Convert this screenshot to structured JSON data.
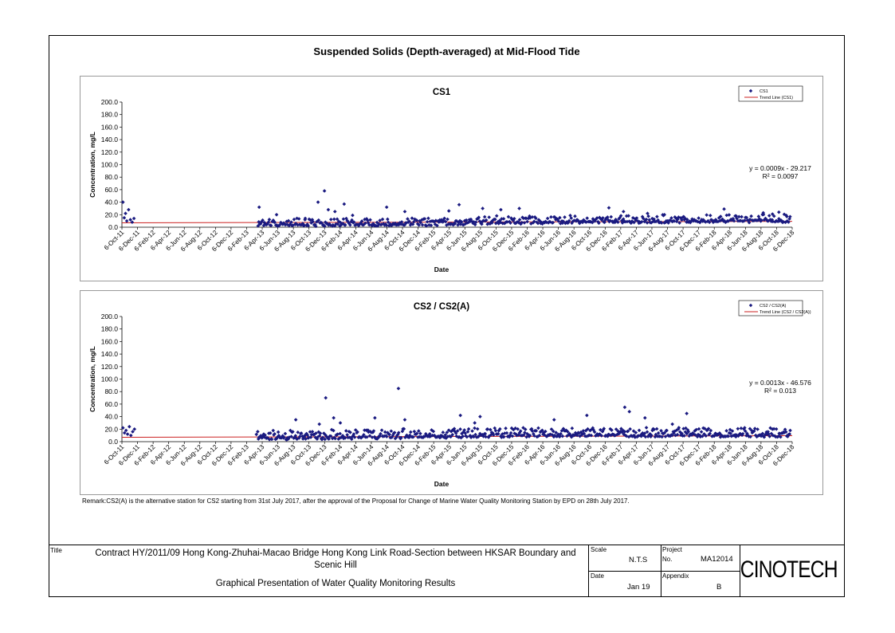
{
  "header": {
    "title": "Suspended Solids (Depth-averaged) at Mid-Flood Tide"
  },
  "charts_meta": {
    "xlabel": "Date",
    "ylabel": "Concentration, mg/L"
  },
  "chart_data": [
    {
      "type": "scatter",
      "title": "CS1",
      "xlabel": "Date",
      "ylabel": "Concentration, mg/L",
      "ylim": [
        0,
        200
      ],
      "xlim": [
        "2011-10-06",
        "2018-12-06"
      ],
      "y_ticks": [
        "0.0",
        "20.0",
        "40.0",
        "60.0",
        "80.0",
        "100.0",
        "120.0",
        "140.0",
        "160.0",
        "180.0",
        "200.0"
      ],
      "x_ticks": [
        "6-Oct-11",
        "6-Dec-11",
        "6-Feb-12",
        "6-Apr-12",
        "6-Jun-12",
        "6-Aug-12",
        "6-Oct-12",
        "6-Dec-12",
        "6-Feb-13",
        "6-Apr-13",
        "6-Jun-13",
        "6-Aug-13",
        "6-Oct-13",
        "6-Dec-13",
        "6-Feb-14",
        "6-Apr-14",
        "6-Jun-14",
        "6-Aug-14",
        "6-Oct-14",
        "6-Dec-14",
        "6-Feb-15",
        "6-Apr-15",
        "6-Jun-15",
        "6-Aug-15",
        "6-Oct-15",
        "6-Dec-15",
        "6-Feb-16",
        "6-Apr-16",
        "6-Jun-16",
        "6-Aug-16",
        "6-Oct-16",
        "6-Dec-16",
        "6-Feb-17",
        "6-Apr-17",
        "6-Jun-17",
        "6-Aug-17",
        "6-Oct-17",
        "6-Dec-17",
        "6-Feb-18",
        "6-Apr-18",
        "6-Jun-18",
        "6-Aug-18",
        "6-Oct-18",
        "6-Dec-18"
      ],
      "legend": {
        "position": "top-right",
        "series_label": "CS1",
        "trend_label": "Trend Line (CS1)"
      },
      "trend": {
        "equation": "y = 0.0009x - 29.217",
        "r2": "R² = 0.0097",
        "y_start": 7.0,
        "y_end": 9.4
      },
      "series_color": "#1a1a80",
      "trend_color": "#cc2222",
      "series": [
        {
          "name": "CS1",
          "x": [
            "2011-10-10",
            "2011-10-15",
            "2011-10-20",
            "2011-10-25",
            "2011-11-01",
            "2011-11-08",
            "2011-11-15",
            "2011-11-22",
            "2013-03-25",
            "2013-06-01",
            "2013-09-20",
            "2013-11-10",
            "2013-12-05",
            "2013-12-20",
            "2014-01-15",
            "2014-02-20",
            "2014-03-25",
            "2014-08-05",
            "2014-10-15",
            "2015-04-05",
            "2015-05-15",
            "2015-08-15",
            "2015-10-25",
            "2016-01-05",
            "2016-12-20",
            "2017-02-15",
            "2017-05-20",
            "2017-07-25",
            "2018-03-15",
            "2018-08-15",
            "2018-09-20",
            "2018-10-15",
            "2018-11-15"
          ],
          "y": [
            40,
            15,
            22,
            10,
            28,
            12,
            8,
            14,
            32,
            20,
            12,
            40,
            58,
            28,
            25,
            37,
            19,
            32,
            25,
            26,
            36,
            30,
            28,
            30,
            31,
            25,
            22,
            20,
            29,
            23,
            21,
            24,
            17
          ],
          "bulk": {
            "start": "2013-03-20",
            "end": "2018-12-02",
            "count": 560,
            "baseline": [
              [
                2013,
                4
              ],
              [
                2015,
                5
              ],
              [
                2016,
                8
              ],
              [
                2018,
                10
              ]
            ],
            "spread": 11,
            "max": 32,
            "min": 0.5
          }
        }
      ]
    },
    {
      "type": "scatter",
      "title": "CS2 / CS2(A)",
      "xlabel": "Date",
      "ylabel": "Concentration, mg/L",
      "ylim": [
        0,
        200
      ],
      "xlim": [
        "2011-10-06",
        "2018-12-06"
      ],
      "y_ticks": [
        "0.0",
        "20.0",
        "40.0",
        "60.0",
        "80.0",
        "100.0",
        "120.0",
        "140.0",
        "160.0",
        "180.0",
        "200.0"
      ],
      "x_ticks": [
        "6-Oct-11",
        "6-Dec-11",
        "6-Feb-12",
        "6-Apr-12",
        "6-Jun-12",
        "6-Aug-12",
        "6-Oct-12",
        "6-Dec-12",
        "6-Feb-13",
        "6-Apr-13",
        "6-Jun-13",
        "6-Aug-13",
        "6-Oct-13",
        "6-Dec-13",
        "6-Feb-14",
        "6-Apr-14",
        "6-Jun-14",
        "6-Aug-14",
        "6-Oct-14",
        "6-Dec-14",
        "6-Feb-15",
        "6-Apr-15",
        "6-Jun-15",
        "6-Aug-15",
        "6-Oct-15",
        "6-Dec-15",
        "6-Feb-16",
        "6-Apr-16",
        "6-Jun-16",
        "6-Aug-16",
        "6-Oct-16",
        "6-Dec-16",
        "6-Feb-17",
        "6-Apr-17",
        "6-Jun-17",
        "6-Aug-17",
        "6-Oct-17",
        "6-Dec-17",
        "6-Feb-18",
        "6-Apr-18",
        "6-Jun-18",
        "6-Aug-18",
        "6-Oct-18",
        "6-Dec-18"
      ],
      "legend": {
        "position": "top-right",
        "series_label": "CS2 / CS2(A)",
        "trend_label": "Trend Line (CS2 / CS2(A))"
      },
      "trend": {
        "equation": "y = 0.0013x - 46.576",
        "r2": "R² = 0.013",
        "y_start": 7.0,
        "y_end": 9.5
      },
      "series_color": "#1a1a80",
      "trend_color": "#cc2222",
      "series": [
        {
          "name": "CS2 / CS2(A)",
          "x": [
            "2011-10-10",
            "2011-10-16",
            "2011-10-22",
            "2011-10-28",
            "2011-11-04",
            "2011-11-10",
            "2011-11-17",
            "2011-11-24",
            "2013-08-15",
            "2013-11-15",
            "2013-12-10",
            "2014-01-10",
            "2014-02-05",
            "2014-06-20",
            "2014-09-20",
            "2014-10-15",
            "2015-05-20",
            "2015-07-15",
            "2015-08-05",
            "2016-05-20",
            "2016-09-25",
            "2017-02-20",
            "2017-03-10",
            "2017-05-10",
            "2017-08-25",
            "2017-10-20"
          ],
          "y": [
            22,
            14,
            18,
            12,
            24,
            10,
            16,
            20,
            35,
            28,
            70,
            38,
            30,
            38,
            85,
            35,
            42,
            30,
            40,
            35,
            42,
            55,
            48,
            38,
            28,
            45
          ],
          "bulk": {
            "start": "2013-03-15",
            "end": "2018-12-02",
            "count": 620,
            "baseline": [
              [
                2013,
                5
              ],
              [
                2015,
                8
              ],
              [
                2016,
                10
              ],
              [
                2018,
                10
              ]
            ],
            "spread": 14,
            "max": 34,
            "min": 0.5
          }
        }
      ]
    }
  ],
  "remark": "Remark:CS2(A) is the alternative station for CS2 starting from 31st July 2017, after the approval of the Proposal for Change of Marine Water Quality Monitoring Station by EPD on 28th July 2017.",
  "titleblock": {
    "title_label": "Title",
    "title_text": "Contract HY/2011/09 Hong Kong-Zhuhai-Macao Bridge Hong Kong Link Road-Section between HKSAR Boundary and Scenic Hill",
    "subtitle_text": "Graphical Presentation of Water Quality Monitoring Results",
    "scale_label": "Scale",
    "scale_value": "N.T.S",
    "project_label": "Project",
    "project_no_label": "No.",
    "project_no_value": "MA12014",
    "date_label": "Date",
    "date_value": "Jan 19",
    "appendix_label": "Appendix",
    "appendix_value": "B",
    "logo_text": "CINOTECH"
  }
}
